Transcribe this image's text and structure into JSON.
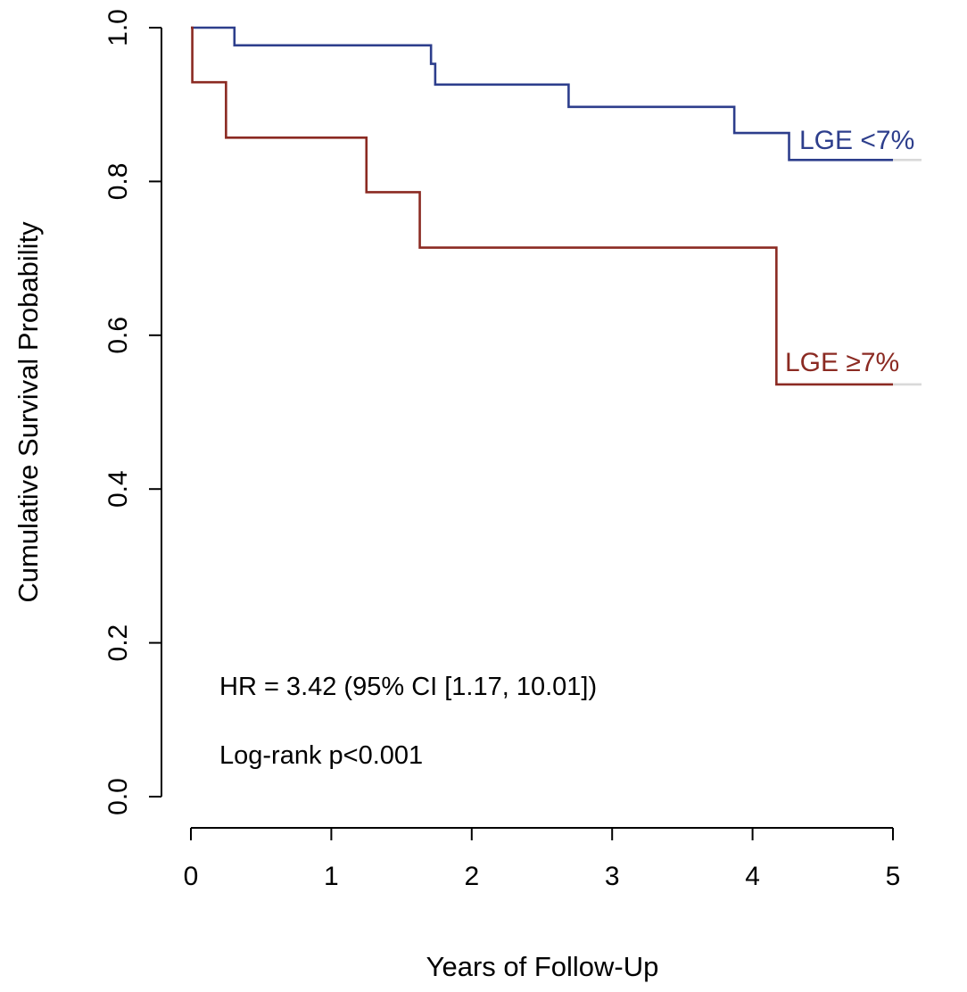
{
  "chart_data": {
    "type": "line",
    "title": "",
    "xlabel": "Years of Follow-Up",
    "ylabel": "Cumulative Survival Probability",
    "xlim": [
      0,
      5
    ],
    "ylim": [
      0,
      1
    ],
    "x_ticks": [
      0,
      1,
      2,
      3,
      4,
      5
    ],
    "x_tick_labels": [
      "0",
      "1",
      "2",
      "3",
      "4",
      "5"
    ],
    "y_ticks": [
      0,
      0.2,
      0.4,
      0.6,
      0.8,
      1
    ],
    "y_tick_labels": [
      "0.0",
      "0.2",
      "0.4",
      "0.6",
      "0.8",
      "1.0"
    ],
    "grid": false,
    "series": [
      {
        "name": "LGE <7%",
        "color": "#2d3e8c",
        "step": true,
        "x": [
          0,
          0.31,
          1.71,
          1.74,
          2.69,
          3.87,
          4.26,
          5
        ],
        "y": [
          1.0,
          0.977,
          0.953,
          0.926,
          0.897,
          0.863,
          0.828,
          0.828
        ]
      },
      {
        "name": "LGE ≥7%",
        "color": "#8b2a22",
        "step": true,
        "x": [
          0,
          0.01,
          0.25,
          1.25,
          1.63,
          4.17,
          5
        ],
        "y": [
          1.0,
          0.929,
          0.857,
          0.786,
          0.714,
          0.536,
          0.536
        ]
      }
    ],
    "annotations": [
      "HR = 3.42 (95% CI [1.17, 10.01])",
      "Log-rank  p<0.001"
    ]
  }
}
